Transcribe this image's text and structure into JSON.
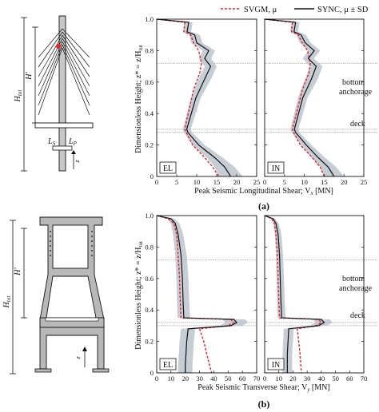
{
  "legend": {
    "svgm": "SVGM, μ",
    "sync": "SYNC, μ ± SD"
  },
  "structure_labels": {
    "htot": "H",
    "htot_sub": "tot",
    "hprime": "H'",
    "ls": "L",
    "ls_sub": "S",
    "lp": "L",
    "lp_sub": "P",
    "z": "z"
  },
  "chart_data": [
    {
      "type": "line",
      "subfigure": "(a)",
      "title": "",
      "xlabel": "Peak Seismic Longitudinal Shear; V",
      "xlabel_sub": "x",
      "xlabel_unit": " [MN]",
      "ylabel": "Dimensionless Height; z* = z/H",
      "ylabel_sub": "tot",
      "ylim": [
        0,
        1.0
      ],
      "yticks": [
        "0",
        "0.2",
        "0.4",
        "0.6",
        "0.8",
        "1.0"
      ],
      "annotations": [
        "bottom",
        "anchorage",
        "deck"
      ],
      "reference_lines": [
        0.72,
        0.3,
        0.28
      ],
      "panels": [
        {
          "label": "EL",
          "xlim": [
            0,
            25
          ],
          "xticks": [
            "0",
            "5",
            "10",
            "15",
            "20",
            "25"
          ],
          "series": [
            {
              "name": "SVGM, μ",
              "style": "dashed",
              "color": "#e8232a",
              "x": [
                0,
                7.0,
                6.8,
                8.5,
                9.2,
                10.5,
                11.2,
                10.8,
                9.2,
                7.0,
                7.4,
                9.0,
                12.0,
                14.0,
                15.5
              ],
              "y": [
                1.0,
                0.98,
                0.92,
                0.9,
                0.85,
                0.8,
                0.72,
                0.66,
                0.55,
                0.3,
                0.28,
                0.2,
                0.12,
                0.06,
                0.0
              ]
            },
            {
              "name": "SYNC, μ",
              "style": "solid",
              "color": "#111111",
              "x": [
                0,
                8.0,
                7.6,
                9.5,
                10.0,
                13.0,
                12.0,
                13.5,
                12.0,
                9.8,
                7.5,
                7.8,
                10.5,
                14.5,
                17.0,
                18.5
              ],
              "y": [
                1.0,
                0.98,
                0.92,
                0.9,
                0.85,
                0.8,
                0.75,
                0.7,
                0.62,
                0.5,
                0.3,
                0.28,
                0.2,
                0.12,
                0.06,
                0.0
              ]
            },
            {
              "name": "SYNC, μ − SD",
              "style": "band",
              "color": "#bcc4cc",
              "x": [
                0,
                7.0,
                6.6,
                8.2,
                8.6,
                11.5,
                10.5,
                12.0,
                10.5,
                8.6,
                6.5,
                6.8,
                9.0,
                12.5,
                14.5,
                15.5
              ],
              "y": [
                1.0,
                0.98,
                0.92,
                0.9,
                0.85,
                0.8,
                0.75,
                0.7,
                0.62,
                0.5,
                0.3,
                0.28,
                0.2,
                0.12,
                0.06,
                0.0
              ]
            },
            {
              "name": "SYNC, μ + SD",
              "style": "band",
              "color": "#bcc4cc",
              "x": [
                0,
                9.0,
                8.6,
                10.8,
                11.4,
                14.6,
                13.6,
                15.0,
                13.6,
                11.0,
                8.5,
                8.8,
                12.0,
                16.5,
                19.5,
                21.5
              ],
              "y": [
                1.0,
                0.98,
                0.92,
                0.9,
                0.85,
                0.8,
                0.75,
                0.7,
                0.62,
                0.5,
                0.3,
                0.28,
                0.2,
                0.12,
                0.06,
                0.0
              ]
            }
          ]
        },
        {
          "label": "IN",
          "xlim": [
            0,
            25
          ],
          "xticks": [
            "0",
            "5",
            "10",
            "15",
            "20",
            "25"
          ],
          "series": [
            {
              "name": "SVGM, μ",
              "style": "dashed",
              "color": "#e8232a",
              "x": [
                0,
                7.0,
                6.8,
                8.5,
                9.5,
                10.8,
                11.5,
                11.2,
                9.5,
                7.0,
                7.3,
                9.0,
                12.0,
                14.0,
                15.0
              ],
              "y": [
                1.0,
                0.98,
                0.92,
                0.9,
                0.85,
                0.8,
                0.72,
                0.66,
                0.55,
                0.3,
                0.28,
                0.2,
                0.12,
                0.06,
                0.0
              ]
            },
            {
              "name": "SYNC, μ",
              "style": "solid",
              "color": "#111111",
              "x": [
                0,
                7.8,
                7.4,
                9.2,
                10.2,
                12.5,
                11.0,
                13.0,
                11.8,
                9.6,
                7.5,
                7.8,
                10.5,
                13.5,
                16.0,
                17.5
              ],
              "y": [
                1.0,
                0.98,
                0.92,
                0.9,
                0.85,
                0.8,
                0.75,
                0.7,
                0.62,
                0.5,
                0.3,
                0.28,
                0.2,
                0.12,
                0.06,
                0.0
              ]
            },
            {
              "name": "SYNC, μ − SD",
              "style": "band",
              "color": "#bcc4cc",
              "x": [
                0,
                6.8,
                6.4,
                8.0,
                8.8,
                11.0,
                9.6,
                11.4,
                10.2,
                8.4,
                6.5,
                6.8,
                9.2,
                11.8,
                14.0,
                15.0
              ],
              "y": [
                1.0,
                0.98,
                0.92,
                0.9,
                0.85,
                0.8,
                0.75,
                0.7,
                0.62,
                0.5,
                0.3,
                0.28,
                0.2,
                0.12,
                0.06,
                0.0
              ]
            },
            {
              "name": "SYNC, μ + SD",
              "style": "band",
              "color": "#bcc4cc",
              "x": [
                0,
                8.8,
                8.4,
                10.4,
                11.6,
                14.0,
                12.4,
                14.6,
                13.4,
                10.8,
                8.5,
                8.8,
                11.8,
                15.2,
                18.0,
                20.0
              ],
              "y": [
                1.0,
                0.98,
                0.92,
                0.9,
                0.85,
                0.8,
                0.75,
                0.7,
                0.62,
                0.5,
                0.3,
                0.28,
                0.2,
                0.12,
                0.06,
                0.0
              ]
            }
          ]
        }
      ]
    },
    {
      "type": "line",
      "subfigure": "(b)",
      "title": "",
      "xlabel": "Peak Seismic Transverse Shear; V",
      "xlabel_sub": "y",
      "xlabel_unit": " [MN]",
      "ylabel": "Dimensionless Height; z* = z/H",
      "ylabel_sub": "tot",
      "ylim": [
        0,
        1.0
      ],
      "yticks": [
        "0",
        "0.2",
        "0.4",
        "0.6",
        "0.8",
        "1.0"
      ],
      "annotations": [
        "bottom",
        "anchorage",
        "deck"
      ],
      "reference_lines": [
        0.72,
        0.32,
        0.3
      ],
      "panels": [
        {
          "label": "EL",
          "xlim": [
            0,
            70
          ],
          "xticks": [
            "0",
            "10",
            "20",
            "30",
            "40",
            "50",
            "60",
            "70"
          ],
          "series": [
            {
              "name": "SVGM, μ",
              "style": "dashed",
              "color": "#e8232a",
              "x": [
                0,
                8.0,
                12.0,
                14.0,
                15.0,
                16.0,
                16.5,
                17.0,
                52.0,
                54.0,
                50.0,
                30.0,
                33.0,
                35.0,
                37.0,
                38.5
              ],
              "y": [
                1.0,
                0.98,
                0.95,
                0.88,
                0.75,
                0.6,
                0.45,
                0.35,
                0.34,
                0.32,
                0.3,
                0.28,
                0.2,
                0.12,
                0.05,
                0.0
              ]
            },
            {
              "name": "SYNC, μ",
              "style": "solid",
              "color": "#111111",
              "x": [
                0,
                10.0,
                13.0,
                15.0,
                17.0,
                18.0,
                18.5,
                19.0,
                54.0,
                56.0,
                52.0,
                22.0,
                21.0,
                20.5,
                20.0,
                20.0
              ],
              "y": [
                1.0,
                0.98,
                0.95,
                0.88,
                0.75,
                0.6,
                0.45,
                0.35,
                0.34,
                0.32,
                0.3,
                0.28,
                0.2,
                0.12,
                0.05,
                0.0
              ]
            },
            {
              "name": "SYNC, μ − SD",
              "style": "band",
              "color": "#bcc4cc",
              "x": [
                0,
                7.5,
                10.0,
                11.5,
                13.0,
                13.8,
                14.2,
                14.6,
                46.0,
                48.0,
                44.0,
                17.0,
                16.0,
                15.5,
                15.0,
                15.0
              ],
              "y": [
                1.0,
                0.98,
                0.95,
                0.88,
                0.75,
                0.6,
                0.45,
                0.35,
                0.34,
                0.32,
                0.3,
                0.28,
                0.2,
                0.12,
                0.05,
                0.0
              ]
            },
            {
              "name": "SYNC, μ + SD",
              "style": "band",
              "color": "#bcc4cc",
              "x": [
                0,
                12.5,
                16.0,
                18.5,
                21.0,
                22.2,
                22.8,
                23.4,
                62.0,
                64.0,
                60.0,
                27.0,
                26.0,
                25.5,
                25.0,
                25.0
              ],
              "y": [
                1.0,
                0.98,
                0.95,
                0.88,
                0.75,
                0.6,
                0.45,
                0.35,
                0.34,
                0.32,
                0.3,
                0.28,
                0.2,
                0.12,
                0.05,
                0.0
              ]
            }
          ]
        },
        {
          "label": "IN",
          "xlim": [
            0,
            70
          ],
          "xticks": [
            "0",
            "10",
            "20",
            "30",
            "40",
            "50",
            "60",
            "70"
          ],
          "series": [
            {
              "name": "SVGM, μ",
              "style": "dashed",
              "color": "#e8232a",
              "x": [
                0,
                5.0,
                7.0,
                8.0,
                9.0,
                9.5,
                10.0,
                10.5,
                38.0,
                40.0,
                36.0,
                23.0,
                24.0,
                25.0,
                25.5,
                26.0
              ],
              "y": [
                1.0,
                0.98,
                0.95,
                0.88,
                0.75,
                0.6,
                0.45,
                0.35,
                0.34,
                0.32,
                0.3,
                0.28,
                0.2,
                0.12,
                0.05,
                0.0
              ]
            },
            {
              "name": "SYNC, μ",
              "style": "solid",
              "color": "#111111",
              "x": [
                0,
                6.0,
                8.0,
                9.5,
                10.5,
                11.0,
                11.5,
                12.0,
                40.0,
                42.0,
                38.0,
                17.0,
                16.5,
                16.0,
                16.0,
                16.0
              ],
              "y": [
                1.0,
                0.98,
                0.95,
                0.88,
                0.75,
                0.6,
                0.45,
                0.35,
                0.34,
                0.32,
                0.3,
                0.28,
                0.2,
                0.12,
                0.05,
                0.0
              ]
            },
            {
              "name": "SYNC, μ − SD",
              "style": "band",
              "color": "#bcc4cc",
              "x": [
                0,
                4.5,
                6.0,
                7.2,
                8.0,
                8.4,
                8.8,
                9.2,
                34.0,
                36.0,
                32.0,
                13.5,
                13.0,
                12.6,
                12.6,
                12.6
              ],
              "y": [
                1.0,
                0.98,
                0.95,
                0.88,
                0.75,
                0.6,
                0.45,
                0.35,
                0.34,
                0.32,
                0.3,
                0.28,
                0.2,
                0.12,
                0.05,
                0.0
              ]
            },
            {
              "name": "SYNC, μ + SD",
              "style": "band",
              "color": "#bcc4cc",
              "x": [
                0,
                7.5,
                10.0,
                11.8,
                13.0,
                13.6,
                14.2,
                14.8,
                46.0,
                48.0,
                44.0,
                20.5,
                20.0,
                19.4,
                19.4,
                19.4
              ],
              "y": [
                1.0,
                0.98,
                0.95,
                0.88,
                0.75,
                0.6,
                0.45,
                0.35,
                0.34,
                0.32,
                0.3,
                0.28,
                0.2,
                0.12,
                0.05,
                0.0
              ]
            }
          ]
        }
      ]
    }
  ]
}
